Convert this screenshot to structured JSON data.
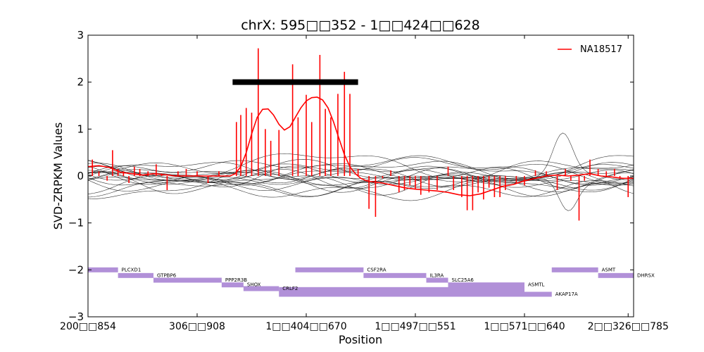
{
  "chart_data": {
    "type": "line",
    "title": "chrX: 595□□352 - 1□□424□□628",
    "xlabel": "Position",
    "ylabel": "SVD-ZRPKM Values",
    "xlim": [
      0,
      100
    ],
    "ylim": [
      -3,
      3
    ],
    "y_ticks": [
      -3,
      -2,
      -1,
      0,
      1,
      2,
      3
    ],
    "y_tick_labels": [
      "−3",
      "−2",
      "−1",
      "0",
      "1",
      "2",
      "3"
    ],
    "x_ticks": [
      {
        "x": 0,
        "label": "200□□854"
      },
      {
        "x": 20,
        "label": "306□□908"
      },
      {
        "x": 40,
        "label": "1□□404□□670"
      },
      {
        "x": 60,
        "label": "1□□497□□551"
      },
      {
        "x": 80,
        "label": "1□□571□□640"
      },
      {
        "x": 99,
        "label": "2□□326□□785"
      }
    ],
    "legend": {
      "position": "top-right",
      "entries": [
        {
          "name": "NA18517",
          "color": "#ff0000"
        }
      ]
    },
    "highlight_bar": {
      "x_start": 26.5,
      "x_end": 49.5,
      "y": 2.0,
      "color": "#000000"
    },
    "sample_series": {
      "name": "NA18517",
      "color": "#ff0000",
      "smooth_curve": {
        "x": [
          0,
          2,
          4,
          6,
          8,
          10,
          12,
          14,
          16,
          18,
          20,
          22,
          24,
          26,
          27,
          28,
          29,
          30,
          31,
          32,
          33,
          34,
          35,
          36,
          37,
          38,
          39,
          40,
          41,
          42,
          43,
          44,
          45,
          46,
          47,
          48,
          49,
          50,
          51,
          52,
          54,
          56,
          58,
          60,
          62,
          64,
          66,
          68,
          70,
          72,
          74,
          76,
          78,
          80,
          82,
          84,
          86,
          88,
          90,
          92,
          94,
          96,
          98,
          100
        ],
        "y": [
          0.2,
          0.22,
          0.18,
          0.08,
          0.05,
          0.02,
          0.05,
          0.03,
          0.0,
          0.0,
          0.0,
          0.0,
          0.0,
          0.0,
          0.05,
          0.2,
          0.5,
          0.9,
          1.25,
          1.42,
          1.43,
          1.3,
          1.1,
          0.98,
          1.05,
          1.25,
          1.45,
          1.6,
          1.67,
          1.68,
          1.62,
          1.45,
          1.15,
          0.8,
          0.45,
          0.2,
          0.05,
          -0.05,
          -0.1,
          -0.12,
          -0.15,
          -0.2,
          -0.25,
          -0.28,
          -0.3,
          -0.32,
          -0.35,
          -0.4,
          -0.42,
          -0.38,
          -0.3,
          -0.22,
          -0.18,
          -0.1,
          -0.05,
          0.0,
          0.02,
          0.0,
          0.02,
          0.05,
          0.0,
          -0.02,
          -0.05,
          -0.05
        ]
      },
      "stems": [
        {
          "x": 0.8,
          "y": 0.35
        },
        {
          "x": 2.0,
          "y": 0.1
        },
        {
          "x": 3.5,
          "y": -0.1
        },
        {
          "x": 4.5,
          "y": 0.55
        },
        {
          "x": 5.5,
          "y": 0.15
        },
        {
          "x": 6.5,
          "y": 0.1
        },
        {
          "x": 7.5,
          "y": -0.15
        },
        {
          "x": 8.5,
          "y": 0.2
        },
        {
          "x": 9.5,
          "y": 0.15
        },
        {
          "x": 11.0,
          "y": 0.1
        },
        {
          "x": 12.5,
          "y": 0.25
        },
        {
          "x": 13.5,
          "y": 0.05
        },
        {
          "x": 14.5,
          "y": -0.3
        },
        {
          "x": 16.5,
          "y": 0.1
        },
        {
          "x": 18.0,
          "y": 0.15
        },
        {
          "x": 20.0,
          "y": 0.1
        },
        {
          "x": 22.0,
          "y": -0.15
        },
        {
          "x": 24.0,
          "y": 0.1
        },
        {
          "x": 27.2,
          "y": 1.15
        },
        {
          "x": 28.0,
          "y": 1.3
        },
        {
          "x": 29.0,
          "y": 1.45
        },
        {
          "x": 30.0,
          "y": 1.35
        },
        {
          "x": 31.2,
          "y": 2.72
        },
        {
          "x": 32.5,
          "y": 1.0
        },
        {
          "x": 33.5,
          "y": 0.75
        },
        {
          "x": 35.0,
          "y": 0.98
        },
        {
          "x": 37.5,
          "y": 2.38
        },
        {
          "x": 38.5,
          "y": 1.25
        },
        {
          "x": 40.0,
          "y": 1.73
        },
        {
          "x": 41.0,
          "y": 1.15
        },
        {
          "x": 42.5,
          "y": 2.58
        },
        {
          "x": 43.5,
          "y": 1.43
        },
        {
          "x": 44.5,
          "y": 1.25
        },
        {
          "x": 45.8,
          "y": 1.75
        },
        {
          "x": 47.0,
          "y": 2.22
        },
        {
          "x": 48.0,
          "y": 1.75
        },
        {
          "x": 49.5,
          "y": 0.15
        },
        {
          "x": 51.5,
          "y": -0.7
        },
        {
          "x": 52.7,
          "y": -0.87
        },
        {
          "x": 54.0,
          "y": -0.05
        },
        {
          "x": 55.5,
          "y": 0.12
        },
        {
          "x": 57.0,
          "y": -0.35
        },
        {
          "x": 58.0,
          "y": -0.3
        },
        {
          "x": 59.0,
          "y": -0.2
        },
        {
          "x": 60.0,
          "y": -0.28
        },
        {
          "x": 61.0,
          "y": -0.4
        },
        {
          "x": 62.5,
          "y": -0.35
        },
        {
          "x": 64.0,
          "y": -0.3
        },
        {
          "x": 66.0,
          "y": 0.2
        },
        {
          "x": 67.0,
          "y": -0.3
        },
        {
          "x": 68.5,
          "y": -0.45
        },
        {
          "x": 69.5,
          "y": -0.73
        },
        {
          "x": 70.5,
          "y": -0.73
        },
        {
          "x": 71.5,
          "y": -0.35
        },
        {
          "x": 72.5,
          "y": -0.5
        },
        {
          "x": 73.5,
          "y": -0.25
        },
        {
          "x": 74.5,
          "y": -0.45
        },
        {
          "x": 75.5,
          "y": -0.45
        },
        {
          "x": 76.5,
          "y": -0.3
        },
        {
          "x": 78.5,
          "y": -0.15
        },
        {
          "x": 80.0,
          "y": -0.2
        },
        {
          "x": 82.0,
          "y": 0.12
        },
        {
          "x": 84.0,
          "y": 0.1
        },
        {
          "x": 86.0,
          "y": -0.3
        },
        {
          "x": 87.5,
          "y": 0.15
        },
        {
          "x": 88.5,
          "y": -0.1
        },
        {
          "x": 90.0,
          "y": -0.95
        },
        {
          "x": 91.0,
          "y": -0.1
        },
        {
          "x": 92.0,
          "y": 0.35
        },
        {
          "x": 93.5,
          "y": 0.15
        },
        {
          "x": 95.0,
          "y": 0.1
        },
        {
          "x": 96.5,
          "y": 0.15
        },
        {
          "x": 97.5,
          "y": -0.05
        },
        {
          "x": 99.0,
          "y": -0.45
        }
      ]
    },
    "background_series": [
      {
        "peak": 0.12,
        "phase": 0.0,
        "freq": 0.14,
        "offset": 0.05
      },
      {
        "peak": 0.18,
        "phase": 1.1,
        "freq": 0.11,
        "offset": -0.05
      },
      {
        "peak": 0.22,
        "phase": 2.3,
        "freq": 0.09,
        "offset": 0.1
      },
      {
        "peak": 0.15,
        "phase": 3.0,
        "freq": 0.17,
        "offset": -0.12
      },
      {
        "peak": 0.2,
        "phase": 0.7,
        "freq": 0.07,
        "offset": 0.0
      },
      {
        "peak": 0.25,
        "phase": 4.1,
        "freq": 0.12,
        "offset": -0.2
      },
      {
        "peak": 0.14,
        "phase": 5.2,
        "freq": 0.15,
        "offset": 0.15
      },
      {
        "peak": 0.3,
        "phase": 1.8,
        "freq": 0.08,
        "offset": -0.08
      },
      {
        "peak": 0.2,
        "phase": 2.9,
        "freq": 0.13,
        "offset": 0.08
      },
      {
        "peak": 0.16,
        "phase": 0.4,
        "freq": 0.19,
        "offset": -0.02
      },
      {
        "peak": 0.27,
        "phase": 3.6,
        "freq": 0.1,
        "offset": 0.2
      },
      {
        "peak": 0.12,
        "phase": 4.8,
        "freq": 0.16,
        "offset": -0.25
      },
      {
        "peak": 0.22,
        "phase": 5.9,
        "freq": 0.06,
        "offset": 0.04
      },
      {
        "peak": 0.18,
        "phase": 1.4,
        "freq": 0.18,
        "offset": -0.15
      },
      {
        "peak": 0.24,
        "phase": 2.6,
        "freq": 0.09,
        "offset": 0.12
      },
      {
        "peak": 0.14,
        "phase": 0.9,
        "freq": 0.21,
        "offset": -0.04
      },
      {
        "peak": 0.2,
        "phase": 3.3,
        "freq": 0.11,
        "offset": 0.02
      },
      {
        "peak": 0.18,
        "phase": 5.5,
        "freq": 0.14,
        "offset": -0.18
      },
      {
        "peak": 0.7,
        "phase": 0.0,
        "freq": 0.0,
        "offset": 0.0,
        "bump_center": 87.0,
        "bump_height": 0.85,
        "bump_width": 2.5
      },
      {
        "peak": 0.35,
        "phase": 0.0,
        "freq": 0.0,
        "offset": -0.1,
        "dip_center": 88.0,
        "dip_height": -0.7,
        "dip_width": 2.5
      }
    ],
    "genes": [
      {
        "name": "PLCXD1",
        "x_start": 0,
        "x_end": 5.5,
        "y": -2.0
      },
      {
        "name": "GTPBP6",
        "x_start": 5.5,
        "x_end": 12.0,
        "y": -2.12
      },
      {
        "name": "PPP2R3B",
        "x_start": 12.0,
        "x_end": 24.5,
        "y": -2.22
      },
      {
        "name": "SHOX",
        "x_start": 24.5,
        "x_end": 28.5,
        "y": -2.32
      },
      {
        "name": "CRLF2",
        "x_start": 28.5,
        "x_end": 35.0,
        "y": -2.4
      },
      {
        "name": "CSF2RA",
        "x_start": 38.0,
        "x_end": 50.5,
        "y": -2.0
      },
      {
        "name": "IL3RA",
        "x_start": 50.5,
        "x_end": 62.0,
        "y": -2.12
      },
      {
        "name": "SLC25A6",
        "x_start": 62.0,
        "x_end": 66.0,
        "y": -2.22
      },
      {
        "name": "ASMTL",
        "x_start": 66.0,
        "x_end": 80.0,
        "y": -2.32
      },
      {
        "name": "AKAP17A",
        "x_start": 35.0,
        "x_end": 85.0,
        "y": -2.52
      },
      {
        "name": "ASMT",
        "x_start": 85.0,
        "x_end": 93.5,
        "y": -2.0
      },
      {
        "name": "DHRSX",
        "x_start": 93.5,
        "x_end": 100.0,
        "y": -2.12
      }
    ],
    "gene_extra_bars": [
      {
        "x_start": 35.0,
        "x_end": 80.0,
        "y": -2.42
      },
      {
        "x_start": 66.0,
        "x_end": 80.0,
        "y": -2.4
      }
    ],
    "gene_color": "#b190d8",
    "grid": false
  }
}
